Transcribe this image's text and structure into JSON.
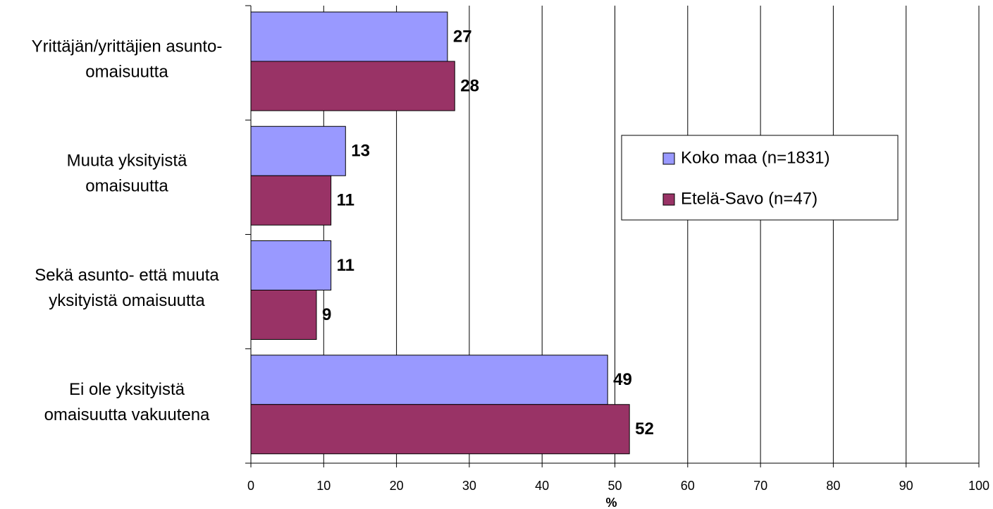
{
  "chart_data": {
    "type": "bar",
    "orientation": "horizontal",
    "categories": [
      [
        "Yrittäjän/yrittäjien asunto-",
        "omaisuutta"
      ],
      [
        "Muuta yksityistä",
        "omaisuutta"
      ],
      [
        "Sekä asunto- että muuta",
        "yksityistä omaisuutta"
      ],
      [
        "Ei ole yksityistä",
        "omaisuutta vakuutena"
      ]
    ],
    "series": [
      {
        "name": "Koko maa (n=1831)",
        "color": "#9999ff",
        "values": [
          27,
          13,
          11,
          49
        ]
      },
      {
        "name": "Etelä-Savo (n=47)",
        "color": "#993366",
        "values": [
          28,
          11,
          9,
          52
        ]
      }
    ],
    "xlabel": "%",
    "xlim": [
      0,
      100
    ],
    "xticks": [
      0,
      10,
      20,
      30,
      40,
      50,
      60,
      70,
      80,
      90,
      100
    ],
    "grid": true,
    "legend": "right"
  }
}
